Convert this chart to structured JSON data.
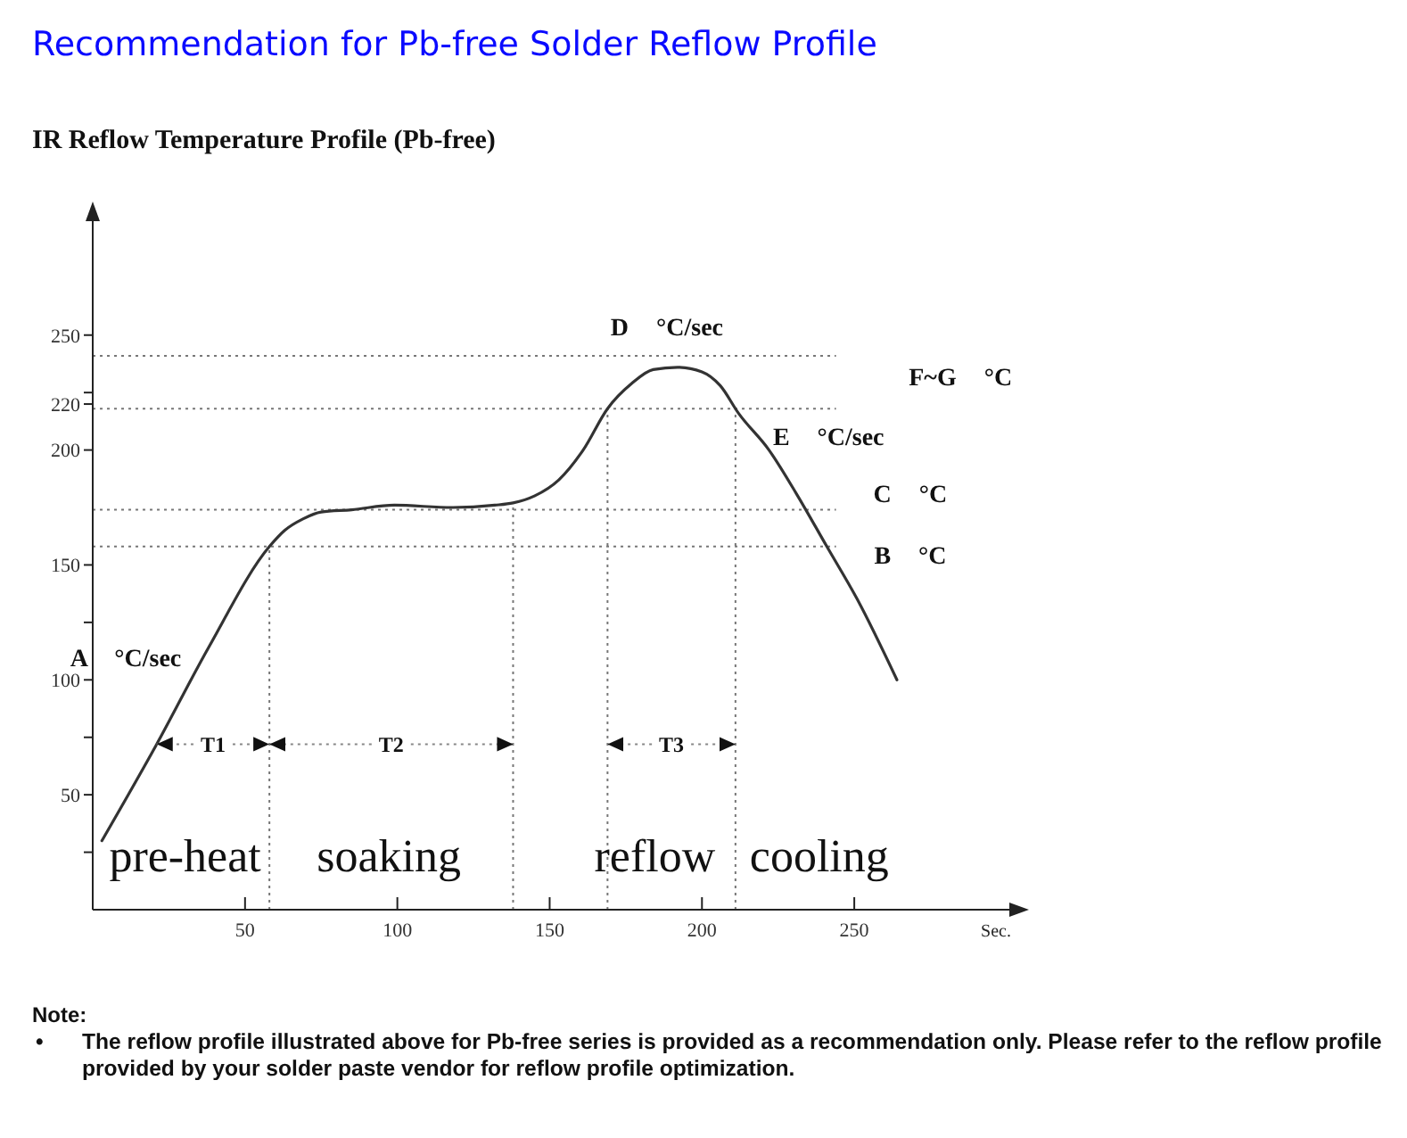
{
  "chart_data": {
    "type": "line",
    "title": "Recommendation for Pb-free Solder Reflow Profile",
    "subtitle": "IR Reflow Temperature Profile (Pb-free)",
    "xlabel": "Sec.",
    "x": [
      3,
      21,
      38,
      58,
      63,
      69,
      75,
      85,
      99,
      118,
      132,
      138,
      145,
      153,
      161,
      169,
      177,
      184,
      192,
      200,
      206,
      212,
      222,
      231,
      241,
      251,
      264
    ],
    "series": [
      {
        "color": "#333333",
        "values": [
          30,
          72,
          114,
          158,
          165,
          170,
          173,
          174,
          176,
          175,
          176,
          177,
          180,
          187,
          200,
          218,
          229,
          235,
          236,
          234,
          228,
          216,
          200,
          181,
          158,
          135,
          100
        ]
      }
    ],
    "xlim": [
      0,
      305
    ],
    "xticks": [
      50,
      100,
      150,
      200,
      250
    ],
    "ylim": [
      0,
      305
    ],
    "yticks": [
      {
        "value": 25,
        "label": null
      },
      50,
      {
        "value": 75,
        "label": null
      },
      100,
      {
        "value": 125,
        "label": null
      },
      150,
      200,
      220,
      {
        "value": 225,
        "label": null
      },
      250
    ],
    "marker": "none",
    "line_style": "solid",
    "ref_lines": [
      {
        "axis": "y",
        "value": 241,
        "color": "#777777",
        "line_style": "dotted"
      },
      {
        "axis": "y",
        "value": 218,
        "color": "#777777",
        "line_style": "dotted"
      },
      {
        "axis": "y",
        "value": 174,
        "color": "#777777",
        "line_style": "dotted"
      },
      {
        "axis": "y",
        "value": 158,
        "color": "#777777",
        "line_style": "dotted"
      },
      {
        "axis": "x",
        "value": 58,
        "color": "#777777",
        "line_style": "dotted"
      },
      {
        "axis": "x",
        "value": 138,
        "color": "#777777",
        "line_style": "dotted"
      },
      {
        "axis": "x",
        "value": 169,
        "color": "#777777",
        "line_style": "dotted"
      },
      {
        "axis": "x",
        "value": 211,
        "color": "#777777",
        "line_style": "dotted"
      }
    ],
    "annotations": [
      "pre-heat",
      "soaking",
      "reflow",
      "cooling",
      "A °C/sec",
      "D °C/sec",
      "E °C/sec",
      "F~G °C",
      "C °C",
      "B °C",
      {
        "text": "T1",
        "x": 58,
        "y": 72
      },
      {
        "text": "T2",
        "x": 138,
        "y": 72
      },
      {
        "text": "T3",
        "x": 211,
        "y": 72
      },
      "Note:",
      "• The reflow profile illustrated above for Pb-free series is provided as a recommendation only. Please refer to the reflow profile provided by your solder paste vendor for reflow profile optimization."
    ]
  }
}
